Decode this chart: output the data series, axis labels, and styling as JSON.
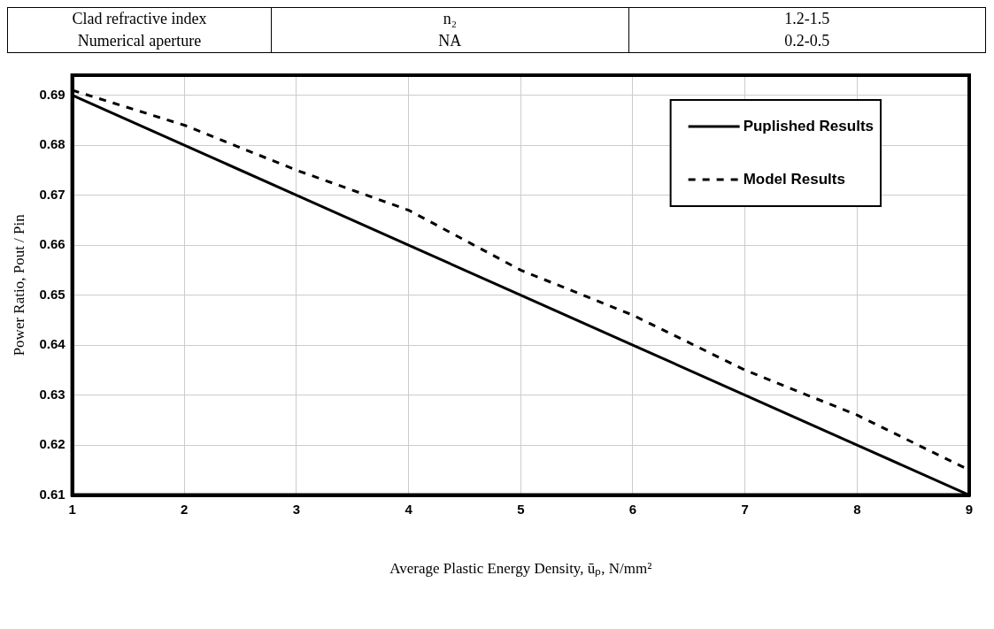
{
  "chart_data": {
    "type": "line",
    "xlabel": "Average Plastic Energy Density, ūₚ, N/mm²",
    "ylabel": "Power Ratio, Pout / Pin",
    "annotations": [
      "Clad refractive index",
      "n₂",
      "1.2-1.5",
      "Numerical aperture",
      "NA",
      "0.2-0.5"
    ],
    "x": [
      1,
      2,
      3,
      4,
      5,
      6,
      7,
      8,
      9
    ],
    "series": [
      {
        "name": "Puplished Results",
        "color": "#000000",
        "line_style": "solid",
        "values": [
          0.69,
          0.68,
          0.67,
          0.66,
          0.65,
          0.64,
          0.63,
          0.62,
          0.61
        ]
      },
      {
        "name": "Model Results",
        "color": "#000000",
        "line_style": "dashed",
        "values": [
          0.691,
          0.684,
          0.675,
          0.667,
          0.655,
          0.646,
          0.635,
          0.626,
          0.615
        ]
      }
    ],
    "xlim": [
      1,
      9
    ],
    "xticks": [
      1,
      2,
      3,
      4,
      5,
      6,
      7,
      8,
      9
    ],
    "ylim": [
      0.61,
      0.694
    ],
    "yticks": [
      0.61,
      0.62,
      0.63,
      0.64,
      0.65,
      0.66,
      0.67,
      0.68,
      0.69
    ],
    "grid": true,
    "legend": "top right",
    "marker": "none"
  }
}
